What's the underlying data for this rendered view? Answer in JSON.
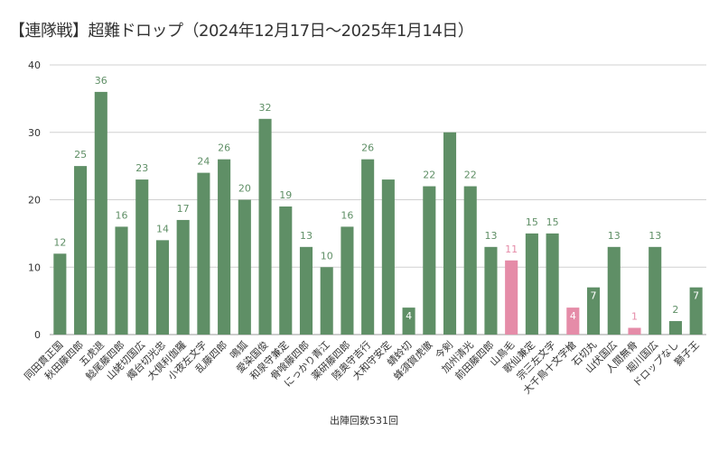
{
  "colors": {
    "default": "#5f8f66",
    "highlight": "#e58ca8",
    "label_default": "#5f8f66",
    "label_highlight": "#e58ca8",
    "grid": "#d0d0d0",
    "axis_text": "#333333"
  },
  "chart_data": {
    "type": "bar",
    "title": "【連隊戦】超難ドロップ（2024年12月17日～2025年1月14日）",
    "xlabel": "出陣回数531回",
    "ylabel": "",
    "ylim": [
      0,
      40
    ],
    "yticks": [
      0,
      10,
      20,
      30,
      40
    ],
    "categories": [
      "同田貫正国",
      "秋田藤四郎",
      "五虎退",
      "鯰尾藤四郎",
      "山姥切国広",
      "燭台切光忠",
      "大倶利伽羅",
      "小夜左文字",
      "乱藤四郎",
      "鳴狐",
      "愛染国俊",
      "和泉守兼定",
      "骨喰藤四郎",
      "にっかり青江",
      "薬研藤四郎",
      "陸奥守吉行",
      "大和守安定",
      "蜻蛉切",
      "蜂須賀虎徹",
      "今剣",
      "加州清光",
      "前田藤四郎",
      "山鳥毛",
      "歌仙兼定",
      "宗三左文字",
      "大千鳥十文字槍",
      "石切丸",
      "山伏国広",
      "人間無骨",
      "堀川国広",
      "ドロップなし",
      "獅子王"
    ],
    "values": [
      12,
      25,
      36,
      16,
      23,
      14,
      17,
      24,
      26,
      20,
      32,
      19,
      13,
      10,
      16,
      26,
      23,
      4,
      22,
      30,
      22,
      13,
      11,
      15,
      15,
      4,
      7,
      13,
      1,
      13,
      2,
      7
    ],
    "data_labels": [
      "12",
      "25",
      "36",
      "16",
      "23",
      "14",
      "17",
      "24",
      "26",
      "20",
      "32",
      "19",
      "13",
      "10",
      "16",
      "26",
      "",
      "4",
      "22",
      "",
      "22",
      "13",
      "11",
      "15",
      "15",
      "4",
      "7",
      "13",
      "1",
      "13",
      "2",
      "7"
    ],
    "highlight": [
      false,
      false,
      false,
      false,
      false,
      false,
      false,
      false,
      false,
      false,
      false,
      false,
      false,
      false,
      false,
      false,
      false,
      false,
      false,
      false,
      false,
      false,
      true,
      false,
      false,
      true,
      false,
      false,
      true,
      false,
      false,
      false
    ],
    "label_inside": [
      false,
      false,
      false,
      false,
      false,
      false,
      false,
      false,
      false,
      false,
      false,
      false,
      false,
      false,
      false,
      false,
      false,
      true,
      false,
      false,
      false,
      false,
      false,
      false,
      false,
      true,
      true,
      false,
      false,
      false,
      false,
      true
    ],
    "grid": true
  }
}
